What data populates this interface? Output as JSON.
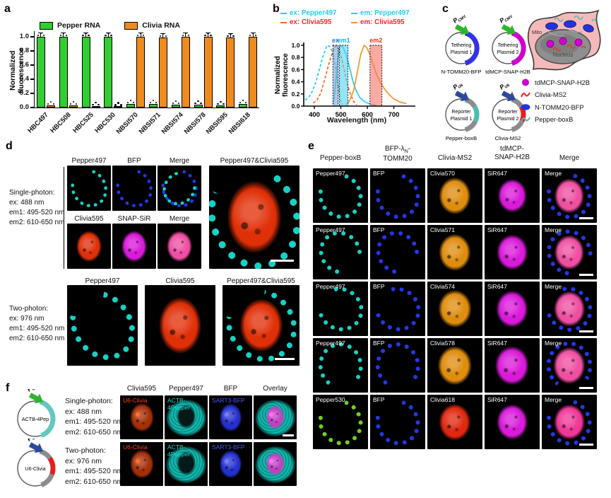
{
  "panels": {
    "a": {
      "label": "a"
    },
    "b": {
      "label": "b"
    },
    "c": {
      "label": "c",
      "plasmids": [
        {
          "name": [
            "Tethering",
            "Plasmid 1"
          ],
          "promoter": "CMV",
          "pcolor": "#2db52d",
          "arc": [
            [
              "#3333e6",
              15,
              165
            ]
          ],
          "caption": "N-TOMM20-BFP"
        },
        {
          "name": [
            "Tethering",
            "Plasmid 2"
          ],
          "promoter": "CMV",
          "pcolor": "#2db52d",
          "arc": [
            [
              "#cc00cc",
              15,
              165
            ]
          ],
          "caption": "tdMCP-SNAP-H2B"
        },
        {
          "name": [
            "Reporter",
            "Plasmid 1"
          ],
          "promoter": "U6",
          "pcolor": "#2b4a9e",
          "arc": [
            [
              "#8c8c8c",
              15,
              60
            ],
            [
              "#49bfb2",
              60,
              115
            ],
            [
              "#8c8c8c",
              115,
              165
            ]
          ],
          "caption": "Pepper-boxB"
        },
        {
          "name": [
            "Reporter",
            "Plasmid 2"
          ],
          "promoter": "U6",
          "pcolor": "#2b4a9e",
          "arc": [
            [
              "#8c8c8c",
              15,
              60
            ],
            [
              "#e81c1c",
              60,
              115
            ],
            [
              "#8c8c8c",
              115,
              165
            ]
          ],
          "caption": "Clivia-MS2"
        }
      ],
      "cell": {
        "mito": "Mito",
        "nucleus": "Nucleus"
      },
      "legend": [
        {
          "icon": "circle",
          "color": "#cc00cc",
          "label": "tdMCP-SNAP-H2B"
        },
        {
          "icon": "squiggle",
          "color": "#e83030",
          "label": "Clivia-MS2"
        },
        {
          "icon": "ellipse",
          "color": "#2233dd",
          "label": "N-TOMM20-BFP"
        },
        {
          "icon": "squiggle",
          "color": "#49bfb2",
          "label": "Pepper-boxB"
        }
      ]
    },
    "d": {
      "label": "d",
      "single": {
        "title": "Single-photon:",
        "lines": [
          "ex: 488 nm",
          "em1: 495-520 nm",
          "em2: 610-650 nm"
        ]
      },
      "two": {
        "title": "Two-photon:",
        "lines": [
          "ex: 976 nm",
          "em1: 495-520 nm",
          "em2: 610-650 nm"
        ]
      },
      "top_headers1": [
        "Pepper497",
        "BFP",
        "Merge"
      ],
      "top_headers2": [
        "Clivia595",
        "SNAP-SiR",
        "Merge"
      ],
      "large_header": "Pepper497&Clivia595",
      "bottom_headers": [
        "Pepper497",
        "Clivia595",
        "Pepper497&Clivia595"
      ],
      "images_top": [
        {
          "f": [
            "ring:#16d2c5:64:-30"
          ]
        },
        {
          "f": [
            "ring:#2238e8:64:-30"
          ]
        },
        {
          "f": [
            "ring:#2238e8:64:-30",
            "ring:#16d2c5:56:40"
          ]
        }
      ],
      "images_mid": [
        {
          "f": [
            "nucleus:#e03008"
          ]
        },
        {
          "f": [
            "nucleus:#da1ada"
          ]
        },
        {
          "f": [
            "nucleus:#ef4fa2"
          ]
        }
      ],
      "image_large": {
        "f": [
          "ring:#16d2c5:84:-20",
          "nucleus:#e03008:60",
          "bar"
        ]
      },
      "images_bottom": [
        {
          "f": [
            "ring:#16d2c5:70:-35"
          ]
        },
        {
          "f": [
            "nucleus:#e03008:60"
          ]
        },
        {
          "f": [
            "ring:#16d2c5:74:-35",
            "nucleus:#e03008:56",
            "bar"
          ]
        }
      ]
    },
    "e": {
      "label": "e",
      "col_headers": [
        [
          "Pepper-boxB"
        ],
        [
          "BFP-λN-",
          "TOMM20"
        ],
        [
          "Clivia-MS2"
        ],
        [
          "tdMCP-",
          "SNAP-H2B"
        ],
        [
          "Merge"
        ]
      ],
      "rows": [
        {
          "cells": [
            {
              "label": "Pepper497",
              "f": [
                "ring:#16d2c5:64:-30"
              ]
            },
            {
              "label": "BFP",
              "f": [
                "ring:#2238e8:64:-30"
              ]
            },
            {
              "label": "Clivia570",
              "f": [
                "nucleus:#df8d0e"
              ]
            },
            {
              "label": "SiR647",
              "f": [
                "nucleus:#da1ada:52"
              ]
            },
            {
              "label": "Merge",
              "f": [
                "ring:#2238e8:66:-30",
                "nucleus:#ef4fa2:54",
                "bar"
              ]
            }
          ]
        },
        {
          "cells": [
            {
              "label": "Pepper497",
              "f": [
                "ring:#16d2c5:60:140"
              ]
            },
            {
              "label": "BFP",
              "f": [
                "ring:#2238e8:60:140"
              ]
            },
            {
              "label": "Clivia571",
              "f": [
                "nucleus:#df8d0e"
              ]
            },
            {
              "label": "SiR647",
              "f": [
                "nucleus:#da1ada:56"
              ]
            },
            {
              "label": "Merge",
              "f": [
                "ring:#2238e8:66:140",
                "nucleus:#ef4fa2:54",
                "bar"
              ]
            }
          ]
        },
        {
          "cells": [
            {
              "label": "Pepper497",
              "f": [
                "ring:#16d2c5:64:-60"
              ]
            },
            {
              "label": "BFP",
              "f": [
                "ring:#2238e8:64:-60"
              ]
            },
            {
              "label": "Clivia574",
              "f": [
                "nucleus:#df8d0e:60"
              ]
            },
            {
              "label": "SiR647",
              "f": [
                "nucleus:#da1ada:58"
              ]
            },
            {
              "label": "Merge",
              "f": [
                "ring:#2238e8:66:-60",
                "nucleus:#ef4fa2:56",
                "bar"
              ]
            }
          ]
        },
        {
          "cells": [
            {
              "label": "Pepper497",
              "f": [
                "ring:#16d2c5:66:170"
              ]
            },
            {
              "label": "BFP",
              "f": [
                "ring:#2238e8:66:170"
              ]
            },
            {
              "label": "Clivia578",
              "f": [
                "nucleus:#df8d0e:62"
              ]
            },
            {
              "label": "SiR647",
              "f": [
                "nucleus:#da1ada:62"
              ]
            },
            {
              "label": "Merge",
              "f": [
                "ring:#2238e8:68:170",
                "nucleus:#ef4fa2:58",
                "bar"
              ]
            }
          ]
        },
        {
          "cells": [
            {
              "label": "Pepper530",
              "f": [
                "ring:#74cf1d:64:-30"
              ]
            },
            {
              "label": "BFP",
              "f": [
                "ring:#2238e8:64:-30"
              ]
            },
            {
              "label": "Clivia618",
              "f": [
                "nucleus:#e02810:58"
              ]
            },
            {
              "label": "SiR647",
              "f": [
                "nucleus:#da1ada:56"
              ]
            },
            {
              "label": "Merge",
              "f": [
                "ring:#2238e8:66:-30",
                "nucleus:#f03898:56",
                "bar"
              ]
            }
          ]
        }
      ]
    },
    "f": {
      "label": "f",
      "plasmids": [
        {
          "name": [
            "ACTB-4Pep"
          ],
          "promoter": "CMV",
          "pcolor": "#2db52d",
          "arc": [
            [
              "#63c8c0",
              15,
              160
            ]
          ]
        },
        {
          "name": [
            "U6-Clivia"
          ],
          "promoter": "U6",
          "pcolor": "#2b4a9e",
          "arc": [
            [
              "#8c8c8c",
              15,
              55
            ],
            [
              "#e81c1c",
              55,
              110
            ],
            [
              "#8c8c8c",
              110,
              160
            ]
          ]
        }
      ],
      "single": {
        "title": "Single-photon:",
        "lines": [
          "ex: 488 nm",
          "em1: 495-520 nm",
          "em2: 610-650 nm"
        ]
      },
      "two": {
        "title": "Two-photon:",
        "lines": [
          "ex: 976 nm",
          "em1: 495-520 nm",
          "em2: 610-650 nm"
        ]
      },
      "col_headers": [
        "Clivia595",
        "Pepper497",
        "BFP",
        "Overlay"
      ],
      "rows": [
        [
          {
            "label": "U6-Clivia",
            "lc": "#ff4020",
            "f": [
              "nucleus:#a33008:56",
              "dot:#ff7030"
            ]
          },
          {
            "label": "ACTB-4Pepper",
            "lc": "#20d8d0",
            "f": [
              "body:#10b7ad",
              "hole"
            ]
          },
          {
            "label": "SART3-BFP",
            "lc": "#4858ff",
            "f": [
              "nucleus:#2530d0:54",
              "dot:#7080ff"
            ]
          },
          {
            "label": "",
            "f": [
              "body:#10b7ad",
              "nucleus:#c040c0:44",
              "dot:#ff70ff",
              "bar"
            ]
          }
        ],
        [
          {
            "label": "U6-Clivia",
            "lc": "#ff4020",
            "f": [
              "nucleus:#a33008:56",
              "dot:#ff7030"
            ]
          },
          {
            "label": "ACTB-4Pepper",
            "lc": "#20d8d0",
            "f": [
              "body:#10b7ad",
              "hole"
            ]
          },
          {
            "label": "SART3-BFP",
            "lc": "#4858ff",
            "f": [
              "nucleus:#2530d0:54",
              "dot:#7080ff"
            ]
          },
          {
            "label": "",
            "f": [
              "body:#10b7ad",
              "nucleus:#c040c0:44",
              "dot:#ff70ff"
            ]
          }
        ]
      ]
    }
  },
  "chart_data": [
    {
      "type": "bar",
      "title": "",
      "categories": [
        "HBC497",
        "HBC508",
        "HBC525",
        "HBC530",
        "NBSI570",
        "NBSI571",
        "NBSI574",
        "NBSI578",
        "NBSI595",
        "NBSI618"
      ],
      "series": [
        {
          "name": "Pepper RNA",
          "color": "#33cc33",
          "values": [
            1.0,
            1.0,
            1.0,
            1.0,
            0.05,
            0.05,
            0.04,
            0.04,
            0.03,
            0.05
          ]
        },
        {
          "name": "Clivia RNA",
          "color": "#f08b1e",
          "values": [
            0.03,
            0.03,
            0.02,
            0.015,
            1.0,
            0.99,
            1.0,
            1.0,
            0.99,
            1.0
          ]
        }
      ],
      "xlabel": "",
      "ylabel": "Normalized fluorescence",
      "ylim": [
        0,
        1.1
      ],
      "yticks": [
        0.0,
        0.2,
        0.4,
        0.6,
        0.8,
        1.0
      ],
      "error_tall": 0.05
    },
    {
      "type": "line",
      "xlabel": "Wavelength (nm)",
      "ylabel": "Normalized fluorescence",
      "xlim": [
        360,
        760
      ],
      "xticks": [
        400,
        500,
        600,
        700
      ],
      "yticks": [
        0.0,
        0.2,
        0.4,
        0.6,
        0.8,
        1.0
      ],
      "series": [
        {
          "name": "ex: Pepper497",
          "color": "#22cdf2",
          "dash": true,
          "points": [
            [
              365,
              0.1
            ],
            [
              378,
              0.14
            ],
            [
              392,
              0.24
            ],
            [
              406,
              0.4
            ],
            [
              420,
              0.62
            ],
            [
              434,
              0.84
            ],
            [
              448,
              1.0
            ],
            [
              458,
              0.98
            ],
            [
              468,
              0.9
            ],
            [
              478,
              0.7
            ],
            [
              488,
              0.4
            ],
            [
              498,
              0.12
            ],
            [
              506,
              0.02
            ]
          ]
        },
        {
          "name": "em: Pepper497",
          "color": "#22cdf2",
          "dash": false,
          "points": [
            [
              472,
              0.03
            ],
            [
              480,
              0.35
            ],
            [
              488,
              0.75
            ],
            [
              497,
              1.0
            ],
            [
              508,
              0.97
            ],
            [
              520,
              0.85
            ],
            [
              532,
              0.65
            ],
            [
              545,
              0.42
            ],
            [
              558,
              0.25
            ],
            [
              572,
              0.14
            ],
            [
              590,
              0.07
            ],
            [
              612,
              0.03
            ],
            [
              635,
              0.01
            ]
          ]
        },
        {
          "name": "ex: Clivia595",
          "color": "#f4681c",
          "dash": true,
          "points": [
            [
              396,
              0.05
            ],
            [
              410,
              0.1
            ],
            [
              425,
              0.22
            ],
            [
              440,
              0.45
            ],
            [
              455,
              0.7
            ],
            [
              470,
              0.9
            ],
            [
              483,
              1.0
            ],
            [
              495,
              0.92
            ],
            [
              505,
              0.75
            ],
            [
              515,
              0.55
            ],
            [
              525,
              0.35
            ],
            [
              536,
              0.2
            ],
            [
              548,
              0.08
            ],
            [
              560,
              0.02
            ]
          ]
        },
        {
          "name": "em: Clivia595",
          "color": "#f79421",
          "dash": false,
          "points": [
            [
              518,
              0.02
            ],
            [
              532,
              0.08
            ],
            [
              548,
              0.25
            ],
            [
              562,
              0.55
            ],
            [
              575,
              0.85
            ],
            [
              588,
              1.0
            ],
            [
              598,
              0.96
            ],
            [
              610,
              0.85
            ],
            [
              622,
              0.68
            ],
            [
              635,
              0.52
            ],
            [
              650,
              0.38
            ],
            [
              665,
              0.28
            ],
            [
              682,
              0.19
            ],
            [
              700,
              0.12
            ],
            [
              722,
              0.07
            ],
            [
              748,
              0.04
            ]
          ]
        }
      ],
      "bands": [
        {
          "label": "ex",
          "color": "#7da7d9",
          "text_color": "#2f6fd0",
          "range": [
            470,
            490
          ]
        },
        {
          "label": "em1",
          "color": "#55d4f4",
          "text_color": "#00b7ea",
          "range": [
            495,
            527
          ]
        },
        {
          "label": "em2",
          "color": "#f4776b",
          "text_color": "#f2300e",
          "range": [
            610,
            655
          ]
        }
      ],
      "legend": [
        {
          "text": "ex: Pepper497",
          "color": "#22cdf2",
          "dash": true,
          "dash_color": "#22cdf2"
        },
        {
          "text": "em: Pepper497",
          "color": "#22cdf2",
          "dash": false,
          "dash_color": "#22cdf2"
        },
        {
          "text": "ex: Clivia595",
          "color": "#ff2a2a",
          "dash": true,
          "dash_color": "#f4681c"
        },
        {
          "text": "em: Clivia595",
          "color": "#ff2a2a",
          "dash": false,
          "dash_color": "#f79421"
        }
      ]
    }
  ]
}
